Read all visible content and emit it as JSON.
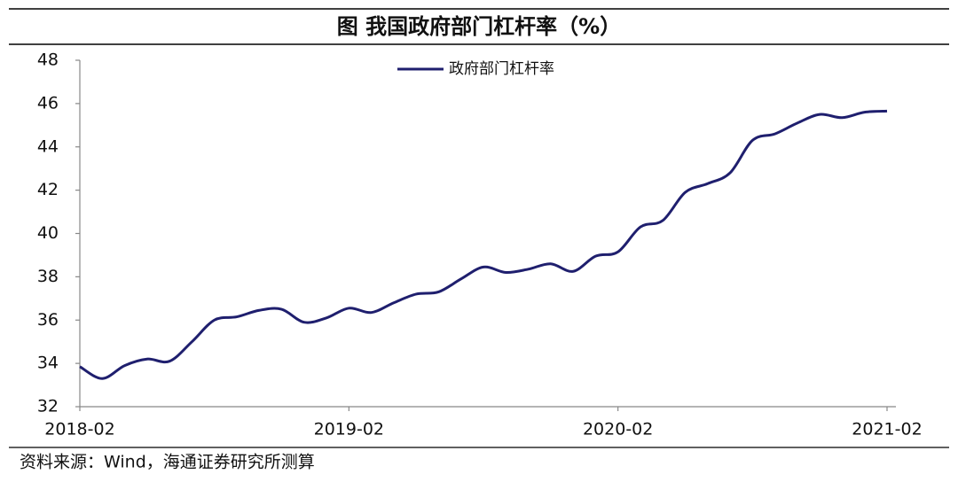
{
  "chart_data": {
    "type": "line",
    "title": "图 我国政府部门杠杆率（%）",
    "categories": [
      "2018-02",
      null,
      null,
      null,
      null,
      null,
      null,
      null,
      null,
      null,
      null,
      null,
      "2019-02",
      null,
      null,
      null,
      null,
      null,
      null,
      null,
      null,
      null,
      null,
      null,
      "2020-02",
      null,
      null,
      null,
      null,
      null,
      null,
      null,
      null,
      null,
      null,
      null,
      "2021-02"
    ],
    "series": [
      {
        "name": "政府部门杠杆率",
        "color": "#1f1f6e",
        "values": [
          33.85,
          33.3,
          33.9,
          34.2,
          34.1,
          35.0,
          36.0,
          36.15,
          36.45,
          36.5,
          35.9,
          36.1,
          36.55,
          36.35,
          36.8,
          37.2,
          37.3,
          37.9,
          38.45,
          38.2,
          38.35,
          38.6,
          38.25,
          38.95,
          39.15,
          40.3,
          40.6,
          41.9,
          42.3,
          42.8,
          44.3,
          44.6,
          45.1,
          45.5,
          45.35,
          45.6,
          45.65
        ]
      }
    ],
    "ylim": [
      32,
      48
    ],
    "yticks": [
      32,
      34,
      36,
      38,
      40,
      42,
      44,
      46,
      48
    ],
    "grid": false,
    "legend": "top"
  },
  "source": "资料来源：Wind，海通证券研究所测算"
}
